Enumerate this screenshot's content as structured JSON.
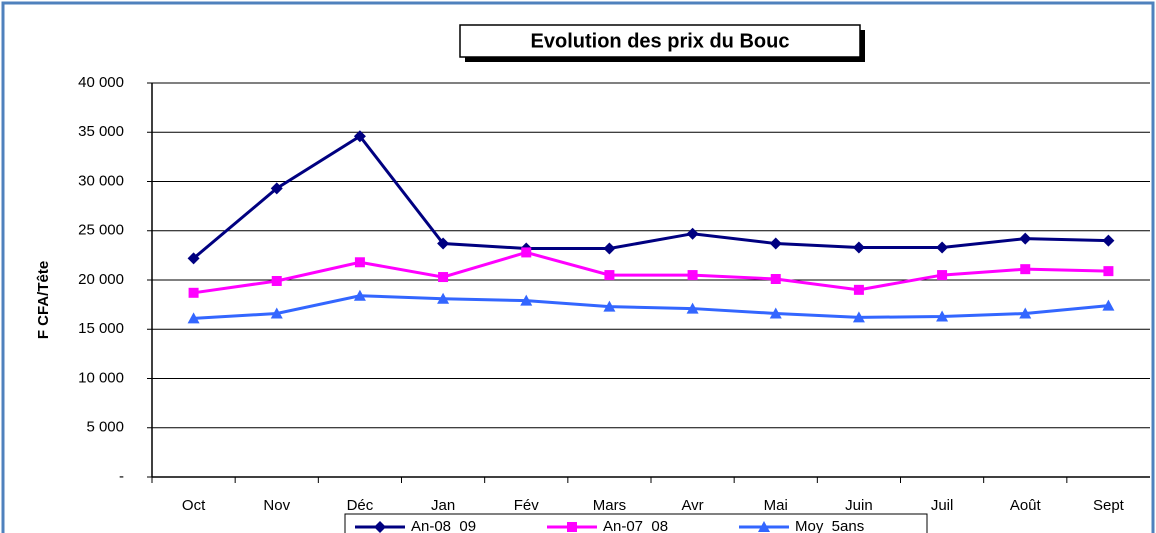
{
  "chart_data": {
    "type": "line",
    "title": "Evolution des prix du Bouc",
    "y_label": "F CFA/Tête",
    "categories": [
      "Oct",
      "Nov",
      "Déc",
      "Jan",
      "Fév",
      "Mars",
      "Avr",
      "Mai",
      "Juin",
      "Juil",
      "Août",
      "Sept"
    ],
    "series": [
      {
        "name": "An-08_09",
        "color": "#000080",
        "marker": "diamond",
        "values": [
          22200,
          29300,
          34600,
          23700,
          23200,
          23200,
          24700,
          23700,
          23300,
          23300,
          24200,
          24000
        ]
      },
      {
        "name": "An-07_08",
        "color": "#ff00ff",
        "marker": "square",
        "values": [
          18700,
          19900,
          21800,
          20300,
          22800,
          20500,
          20500,
          20100,
          19000,
          20500,
          21100,
          20900
        ]
      },
      {
        "name": "Moy_5ans",
        "color": "#3366ff",
        "marker": "triangle",
        "values": [
          16100,
          16600,
          18400,
          18100,
          17900,
          17300,
          17100,
          16600,
          16200,
          16300,
          16600,
          17400
        ]
      }
    ],
    "ylim": [
      0,
      40000
    ],
    "yticks": [
      {
        "value": 0,
        "label": "-"
      },
      {
        "value": 5000,
        "label": "5 000"
      },
      {
        "value": 10000,
        "label": "10 000"
      },
      {
        "value": 15000,
        "label": "15 000"
      },
      {
        "value": 20000,
        "label": "20 000"
      },
      {
        "value": 25000,
        "label": "25 000"
      },
      {
        "value": 30000,
        "label": "30 000"
      },
      {
        "value": 35000,
        "label": "35 000"
      },
      {
        "value": 40000,
        "label": "40 000"
      }
    ],
    "grid": true
  }
}
